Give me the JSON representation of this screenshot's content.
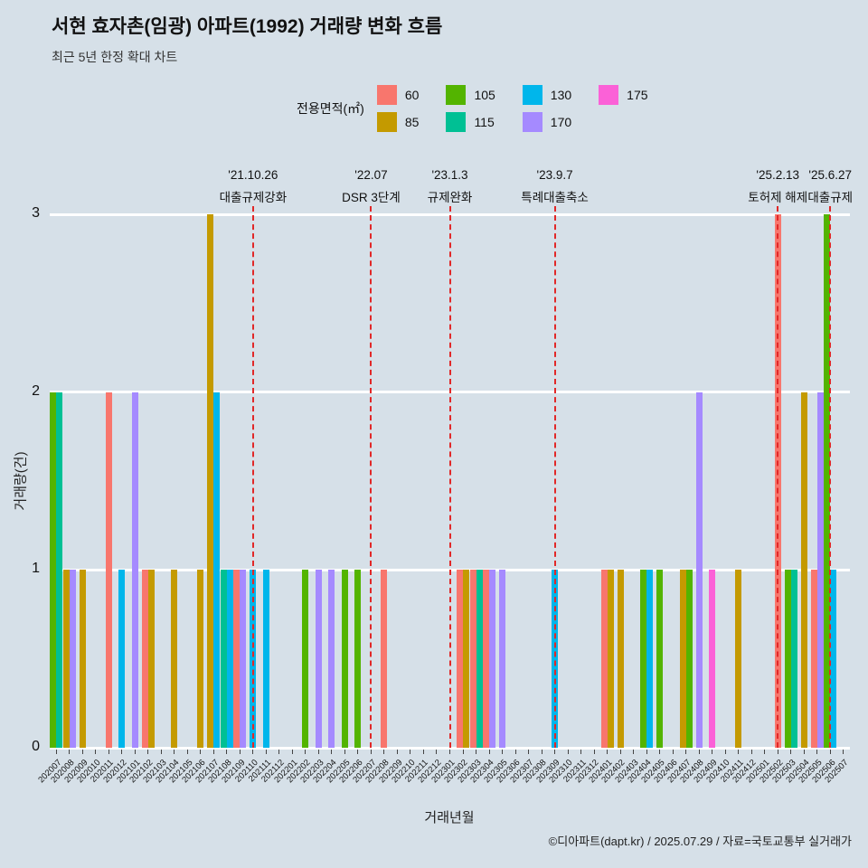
{
  "title": "서현 효자촌(임광) 아파트(1992) 거래량 변화 흐름",
  "subtitle": "최근 5년 한정 확대 차트",
  "legend": {
    "label": "전용면적(㎡)",
    "items": [
      {
        "label": "60",
        "color": "#F8766D"
      },
      {
        "label": "85",
        "color": "#C49A00"
      },
      {
        "label": "105",
        "color": "#53B400"
      },
      {
        "label": "115",
        "color": "#00C094"
      },
      {
        "label": "130",
        "color": "#00B6EB"
      },
      {
        "label": "170",
        "color": "#A58AFF"
      },
      {
        "label": "175",
        "color": "#FB61D7"
      }
    ]
  },
  "colors": {
    "background": "#d6e0e8",
    "gridline": "#ffffff",
    "event_line": "#e12828"
  },
  "chart_data": {
    "type": "bar",
    "title": "서현 효자촌(임광) 아파트(1992) 거래량 변화 흐름",
    "xlabel": "거래년월",
    "ylabel": "거래량(건)",
    "ylim": [
      0,
      3
    ],
    "yticks": [
      0,
      1,
      2,
      3
    ],
    "legend_position": "top",
    "grid": "horizontal-white",
    "months": [
      "202007",
      "202008",
      "202009",
      "202010",
      "202011",
      "202012",
      "202101",
      "202102",
      "202103",
      "202104",
      "202105",
      "202106",
      "202107",
      "202108",
      "202109",
      "202110",
      "202111",
      "202112",
      "202201",
      "202202",
      "202203",
      "202204",
      "202205",
      "202206",
      "202207",
      "202208",
      "202209",
      "202210",
      "202211",
      "202212",
      "202301",
      "202302",
      "202303",
      "202304",
      "202305",
      "202306",
      "202307",
      "202308",
      "202309",
      "202310",
      "202311",
      "202312",
      "202401",
      "202402",
      "202403",
      "202404",
      "202405",
      "202406",
      "202407",
      "202408",
      "202409",
      "202410",
      "202411",
      "202412",
      "202501",
      "202502",
      "202503",
      "202504",
      "202505",
      "202506",
      "202507"
    ],
    "bars": [
      {
        "month": "202007",
        "area": "105",
        "count": 2
      },
      {
        "month": "202007",
        "area": "115",
        "count": 2
      },
      {
        "month": "202008",
        "area": "85",
        "count": 1
      },
      {
        "month": "202008",
        "area": "170",
        "count": 1
      },
      {
        "month": "202009",
        "area": "85",
        "count": 1
      },
      {
        "month": "202011",
        "area": "60",
        "count": 2
      },
      {
        "month": "202012",
        "area": "130",
        "count": 1
      },
      {
        "month": "202101",
        "area": "170",
        "count": 2
      },
      {
        "month": "202102",
        "area": "60",
        "count": 1
      },
      {
        "month": "202102",
        "area": "85",
        "count": 1
      },
      {
        "month": "202104",
        "area": "85",
        "count": 1
      },
      {
        "month": "202106",
        "area": "85",
        "count": 1
      },
      {
        "month": "202107",
        "area": "85",
        "count": 3
      },
      {
        "month": "202107",
        "area": "130",
        "count": 2
      },
      {
        "month": "202108",
        "area": "115",
        "count": 1
      },
      {
        "month": "202108",
        "area": "130",
        "count": 1
      },
      {
        "month": "202109",
        "area": "60",
        "count": 1
      },
      {
        "month": "202109",
        "area": "170",
        "count": 1
      },
      {
        "month": "202110",
        "area": "130",
        "count": 1
      },
      {
        "month": "202111",
        "area": "130",
        "count": 1
      },
      {
        "month": "202202",
        "area": "105",
        "count": 1
      },
      {
        "month": "202203",
        "area": "170",
        "count": 1
      },
      {
        "month": "202204",
        "area": "170",
        "count": 1
      },
      {
        "month": "202205",
        "area": "105",
        "count": 1
      },
      {
        "month": "202206",
        "area": "105",
        "count": 1
      },
      {
        "month": "202208",
        "area": "60",
        "count": 1
      },
      {
        "month": "202302",
        "area": "60",
        "count": 1
      },
      {
        "month": "202302",
        "area": "85",
        "count": 1
      },
      {
        "month": "202303",
        "area": "60",
        "count": 1
      },
      {
        "month": "202303",
        "area": "115",
        "count": 1
      },
      {
        "month": "202304",
        "area": "60",
        "count": 1
      },
      {
        "month": "202304",
        "area": "170",
        "count": 1
      },
      {
        "month": "202305",
        "area": "170",
        "count": 1
      },
      {
        "month": "202309",
        "area": "130",
        "count": 1
      },
      {
        "month": "202401",
        "area": "60",
        "count": 1
      },
      {
        "month": "202401",
        "area": "85",
        "count": 1
      },
      {
        "month": "202402",
        "area": "85",
        "count": 1
      },
      {
        "month": "202404",
        "area": "105",
        "count": 1
      },
      {
        "month": "202404",
        "area": "130",
        "count": 1
      },
      {
        "month": "202405",
        "area": "105",
        "count": 1
      },
      {
        "month": "202407",
        "area": "85",
        "count": 1
      },
      {
        "month": "202407",
        "area": "105",
        "count": 1
      },
      {
        "month": "202408",
        "area": "170",
        "count": 2
      },
      {
        "month": "202409",
        "area": "175",
        "count": 1
      },
      {
        "month": "202411",
        "area": "85",
        "count": 1
      },
      {
        "month": "202502",
        "area": "60",
        "count": 3
      },
      {
        "month": "202503",
        "area": "105",
        "count": 1
      },
      {
        "month": "202503",
        "area": "115",
        "count": 1
      },
      {
        "month": "202504",
        "area": "85",
        "count": 2
      },
      {
        "month": "202505",
        "area": "60",
        "count": 1
      },
      {
        "month": "202505",
        "area": "170",
        "count": 2
      },
      {
        "month": "202506",
        "area": "105",
        "count": 3
      },
      {
        "month": "202506",
        "area": "130",
        "count": 1
      }
    ],
    "events": [
      {
        "month": "202110",
        "date": "'21.10.26",
        "label": "대출규제강화"
      },
      {
        "month": "202207",
        "date": "'22.07",
        "label": "DSR 3단계"
      },
      {
        "month": "202301",
        "date": "'23.1.3",
        "label": "규제완화"
      },
      {
        "month": "202309",
        "date": "'23.9.7",
        "label": "특례대출축소"
      },
      {
        "month": "202502",
        "date": "'25.2.13",
        "label": "토허제 해제"
      },
      {
        "month": "202506",
        "date": "'25.6.27",
        "label": "대출규제"
      }
    ]
  },
  "footer": "©디아파트(dapt.kr) / 2025.07.29 / 자료=국토교통부 실거래가"
}
